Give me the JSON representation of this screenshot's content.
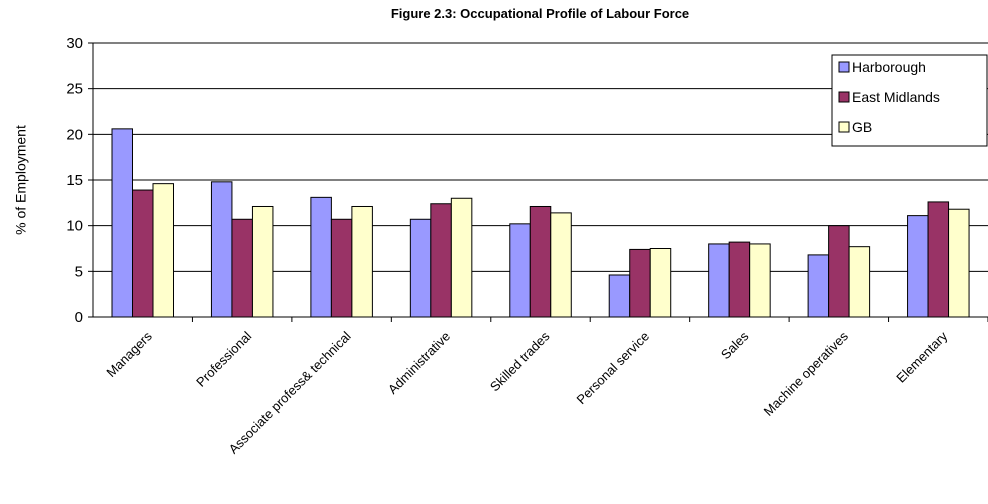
{
  "chart_data": {
    "type": "bar",
    "title": "Figure 2.3: Occupational Profile of Labour Force",
    "y_label": "% of Employment",
    "categories": [
      "Managers",
      "Professional",
      "Associate profess& technical",
      "Administrative",
      "Skilled trades",
      "Personal service",
      "Sales",
      "Machine operatives",
      "Elementary"
    ],
    "series": [
      {
        "name": "Harborough",
        "color": "#9999ff",
        "values": [
          20.6,
          14.8,
          13.1,
          10.7,
          10.2,
          4.6,
          8.0,
          6.8,
          11.1
        ]
      },
      {
        "name": "East Midlands",
        "color": "#993366",
        "values": [
          13.9,
          10.7,
          10.7,
          12.4,
          12.1,
          7.4,
          8.2,
          10.0,
          12.6
        ]
      },
      {
        "name": "GB",
        "color": "#ffffcc",
        "values": [
          14.6,
          12.1,
          12.1,
          13.0,
          11.4,
          7.5,
          8.0,
          7.7,
          11.8
        ]
      }
    ],
    "ylim": [
      0,
      30
    ],
    "yticks": [
      0,
      5,
      10,
      15,
      20,
      25,
      30
    ],
    "grid": true,
    "legend": "top-right"
  }
}
